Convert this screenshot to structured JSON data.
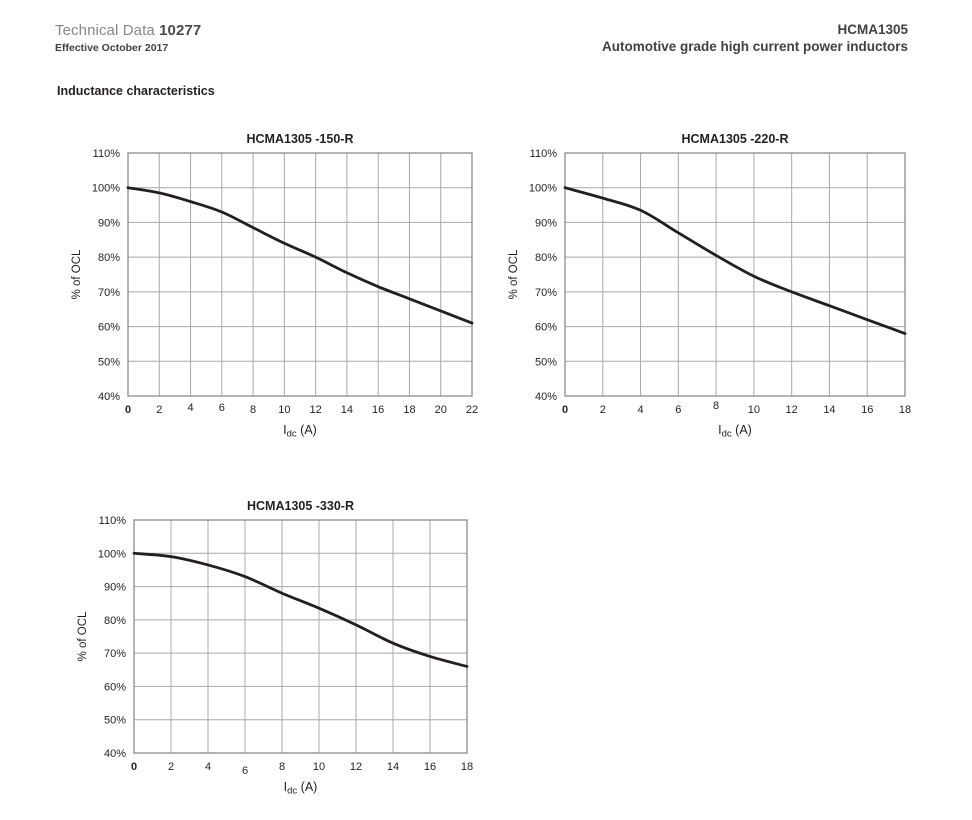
{
  "header": {
    "doc_type": "Technical Data",
    "doc_number": "10277",
    "effective_date": "Effective October 2017",
    "part_number": "HCMA1305",
    "subtitle": "Automotive grade high current power inductors"
  },
  "section": {
    "title": "Inductance characteristics"
  },
  "colors": {
    "text": "#231f20",
    "muted_text": "#87888a",
    "grid": "#a6a8ab",
    "frame": "#898b8e",
    "curve": "#231f20",
    "background": "#ffffff"
  },
  "chart_data": [
    {
      "type": "line",
      "title": "HCMA1305 -150-R",
      "xlabel": "Idc (A)",
      "xlabel_parts": {
        "base": "I",
        "subscript": "dc",
        "rest": " (A)"
      },
      "ylabel": "% of OCL",
      "xlim": [
        0,
        22
      ],
      "ylim": [
        40,
        110
      ],
      "x_ticks": [
        0,
        2,
        4,
        6,
        8,
        10,
        12,
        14,
        16,
        18,
        20,
        22
      ],
      "y_ticks": [
        110,
        100,
        90,
        80,
        70,
        60,
        50,
        40
      ],
      "y_tick_suffix": "%",
      "grid": true,
      "legend": "none",
      "series": [
        {
          "name": "% of OCL vs Idc",
          "x": [
            0,
            2,
            4,
            6,
            8,
            10,
            12,
            14,
            16,
            18,
            20,
            22
          ],
          "y": [
            100,
            98.5,
            96,
            93,
            88.5,
            84,
            80,
            75.5,
            71.5,
            68,
            64.5,
            61
          ]
        }
      ],
      "x_tick_label_dy": {
        "4": -2,
        "6": -2
      }
    },
    {
      "type": "line",
      "title": "HCMA1305 -220-R",
      "xlabel": "Idc (A)",
      "xlabel_parts": {
        "base": "I",
        "subscript": "dc",
        "rest": " (A)"
      },
      "ylabel": "% of OCL",
      "xlim": [
        0,
        18
      ],
      "ylim": [
        40,
        110
      ],
      "x_ticks": [
        0,
        2,
        4,
        6,
        8,
        10,
        12,
        14,
        16,
        18
      ],
      "y_ticks": [
        110,
        100,
        90,
        80,
        70,
        60,
        50,
        40
      ],
      "y_tick_suffix": "%",
      "grid": true,
      "legend": "none",
      "series": [
        {
          "name": "% of OCL vs Idc",
          "x": [
            0,
            2,
            4,
            6,
            8,
            10,
            12,
            14,
            16,
            18
          ],
          "y": [
            100,
            97,
            93.5,
            87,
            80.5,
            74.5,
            70,
            66,
            62,
            58
          ]
        }
      ],
      "x_tick_label_dy": {
        "8": -4
      }
    },
    {
      "type": "line",
      "title": "HCMA1305 -330-R",
      "xlabel": "Idc (A)",
      "xlabel_parts": {
        "base": "I",
        "subscript": "dc",
        "rest": " (A)"
      },
      "ylabel": "% of OCL",
      "xlim": [
        0,
        18
      ],
      "ylim": [
        40,
        110
      ],
      "x_ticks": [
        0,
        2,
        4,
        6,
        8,
        10,
        12,
        14,
        16,
        18
      ],
      "y_ticks": [
        110,
        100,
        90,
        80,
        70,
        60,
        50,
        40
      ],
      "y_tick_suffix": "%",
      "grid": true,
      "legend": "none",
      "series": [
        {
          "name": "% of OCL vs Idc",
          "x": [
            0,
            2,
            4,
            6,
            8,
            10,
            12,
            14,
            16,
            18
          ],
          "y": [
            100,
            99,
            96.5,
            93,
            88,
            83.5,
            78.5,
            73,
            69,
            66
          ]
        }
      ],
      "x_tick_label_dy": {
        "6": 4
      }
    }
  ]
}
